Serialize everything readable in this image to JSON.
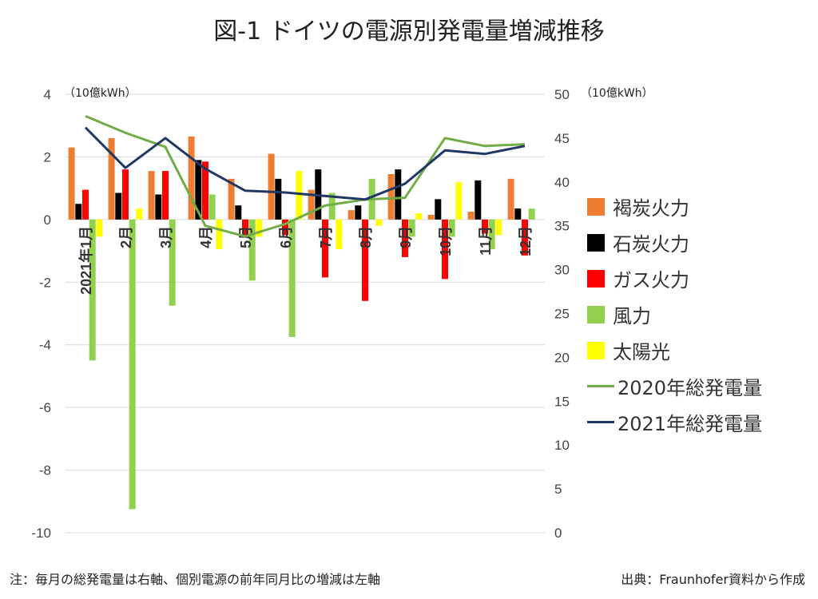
{
  "title": "図-1 ドイツの電源別発電量増減推移",
  "left_unit": "（10億kWh）",
  "right_unit": "（10億kWh）",
  "footer_note": "注：毎月の総発電量は右軸、個別電源の前年同月比の増減は左軸",
  "footer_source": "出典：Fraunhofer資料から作成",
  "chart_data": {
    "type": "bar",
    "categories": [
      "2021年1月",
      "2月",
      "3月",
      "4月",
      "5月",
      "6月",
      "7月",
      "8月",
      "9月",
      "10月",
      "11月",
      "12月"
    ],
    "left_axis": {
      "ylim": [
        -10,
        4
      ],
      "ticks": [
        "4",
        "2",
        "0",
        "-2",
        "-4",
        "-6",
        "-8",
        "-10"
      ]
    },
    "right_axis": {
      "ylim": [
        0,
        50
      ],
      "ticks": [
        "50",
        "45",
        "40",
        "35",
        "30",
        "25",
        "20",
        "15",
        "10",
        "5",
        "0"
      ]
    },
    "grid": true,
    "legend_position": "right",
    "series": [
      {
        "name": "褐炭火力",
        "axis": "left",
        "color": "#ED7D31",
        "values": [
          2.3,
          2.6,
          1.55,
          2.65,
          1.3,
          2.1,
          0.95,
          0.3,
          1.45,
          0.15,
          0.25,
          1.3
        ]
      },
      {
        "name": "石炭火力",
        "axis": "left",
        "color": "#000000",
        "values": [
          0.5,
          0.85,
          0.8,
          1.9,
          0.45,
          1.3,
          1.6,
          0.45,
          1.6,
          0.65,
          1.25,
          0.35
        ]
      },
      {
        "name": "ガス火力",
        "axis": "left",
        "color": "#FF0000",
        "values": [
          0.95,
          1.6,
          1.55,
          1.85,
          -0.55,
          -0.5,
          -1.85,
          -2.6,
          -1.2,
          -1.9,
          -0.45,
          -1.15
        ]
      },
      {
        "name": "風力",
        "axis": "left",
        "color": "#92D050",
        "values": [
          -4.5,
          -9.25,
          -2.75,
          0.8,
          -1.95,
          -3.75,
          0.85,
          1.3,
          -0.55,
          -0.55,
          -0.95,
          0.35
        ]
      },
      {
        "name": "太陽光",
        "axis": "left",
        "color": "#FFFF00",
        "values": [
          -0.55,
          0.35,
          0.0,
          -0.95,
          -0.55,
          1.55,
          -0.95,
          -0.2,
          0.2,
          1.2,
          -0.5,
          0.0
        ]
      },
      {
        "name": "2020年総発電量",
        "axis": "right",
        "type": "line",
        "color": "#70AD47",
        "values": [
          47.5,
          45.6,
          44.0,
          35.0,
          33.8,
          35.2,
          37.3,
          38.0,
          38.2,
          45.0,
          44.1,
          44.3
        ]
      },
      {
        "name": "2021年総発電量",
        "axis": "right",
        "type": "line",
        "color": "#1F3864",
        "values": [
          46.2,
          41.6,
          45.0,
          41.5,
          39.0,
          38.8,
          38.4,
          38.0,
          39.8,
          43.6,
          43.2,
          44.1
        ]
      }
    ]
  }
}
